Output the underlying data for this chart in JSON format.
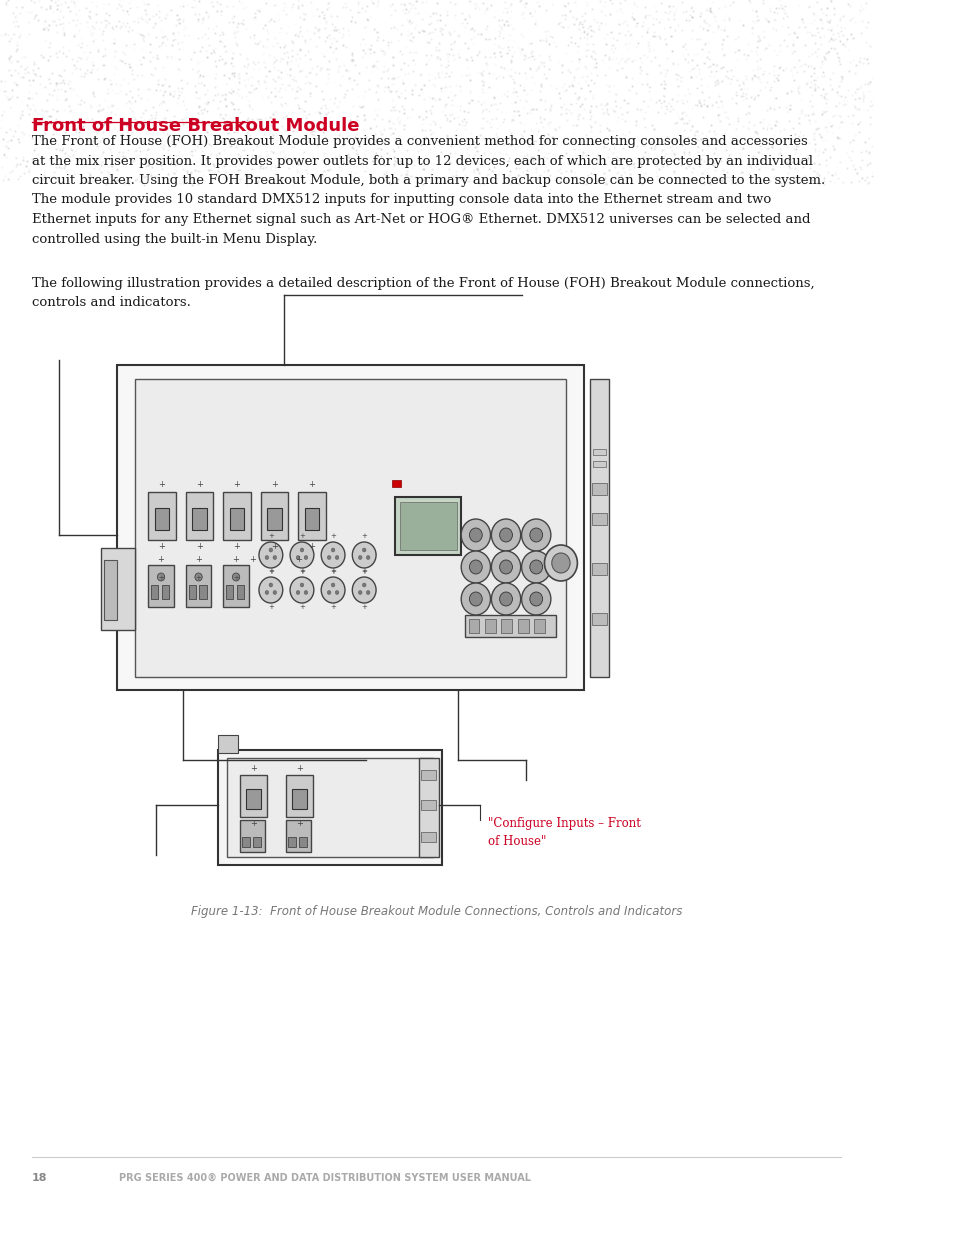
{
  "page_bg": "#ffffff",
  "title": "Front of House Breakout Module",
  "title_color": "#cc0022",
  "title_fontsize": 13,
  "body_text_1": "The Front of House (FOH) Breakout Module provides a convenient method for connecting consoles and accessories\nat the mix riser position. It provides power outlets for up to 12 devices, each of which are protected by an individual\ncircuit breaker. Using the FOH Breakout Module, both a primary and backup console can be connected to the system.\nThe module provides 10 standard DMX512 inputs for inputting console data into the Ethernet stream and two\nEthernet inputs for any Ethernet signal such as Art-Net or HOG® Ethernet. DMX512 universes can be selected and\ncontrolled using the built-in Menu Display.",
  "body_text_2": "The following illustration provides a detailed description of the Front of House (FOH) Breakout Module connections,\ncontrols and indicators.",
  "figure_caption": "Figure 1-13:  Front of House Breakout Module Connections, Controls and Indicators",
  "footer_page": "18",
  "footer_text": "PRG SERIES 400® POWER AND DATA DISTRIBUTION SYSTEM USER MANUAL",
  "annotation_text": "\"Configure Inputs – Front\nof House\"",
  "annotation_color": "#cc0022",
  "body_fontsize": 9.5,
  "caption_fontsize": 8.5,
  "footer_fontsize": 7
}
